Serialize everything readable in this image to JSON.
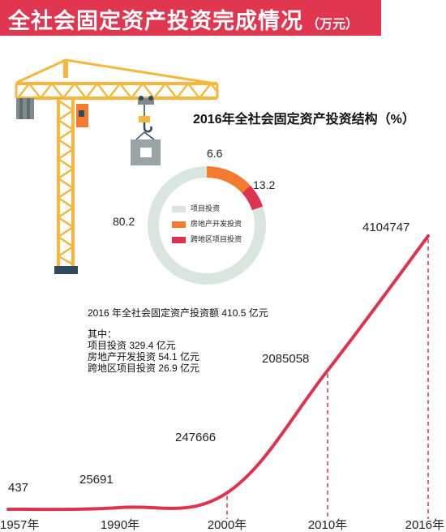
{
  "banner": {
    "title": "全社会固定资产投资完成情况",
    "unit": "（万元）"
  },
  "colors": {
    "accent": "#e0364f",
    "crane": "#f6b73c",
    "crane_dark": "#2e4a5c",
    "project": "#d9e6df",
    "real_estate": "#f47a2e",
    "cross_region": "#dd3350"
  },
  "summary": {
    "total": "2016 年全社会固定资产投资额 410.5 亿元",
    "of_which": "其中：",
    "project": "项目投资 329.4 亿元",
    "real_estate": "房地产开发投资 54.1 亿元",
    "cross_region": "跨地区项目投资 26.9 亿元"
  },
  "chart_data": [
    {
      "type": "line",
      "title": "",
      "x": [
        "1957年",
        "1990年",
        "2000年",
        "2010年",
        "2016年"
      ],
      "values": [
        437,
        25691,
        247666,
        2085058,
        4104747
      ],
      "labels": [
        "437",
        "25691",
        "247666",
        "2085058",
        "4104747"
      ],
      "xlabel": "",
      "ylabel": "",
      "grid": false
    },
    {
      "type": "pie",
      "title": "2016年全社会固定资产投资结构（%）",
      "style": "donut",
      "slices": [
        {
          "name": "项目投资",
          "value": 80.2,
          "label": "80.2",
          "color": "#d9e6df"
        },
        {
          "name": "房地产开发投资",
          "value": 13.2,
          "label": "13.2",
          "color": "#f47a2e"
        },
        {
          "name": "跨地区项目投资",
          "value": 6.6,
          "label": "6.6",
          "color": "#dd3350"
        }
      ],
      "legend": "center"
    }
  ]
}
